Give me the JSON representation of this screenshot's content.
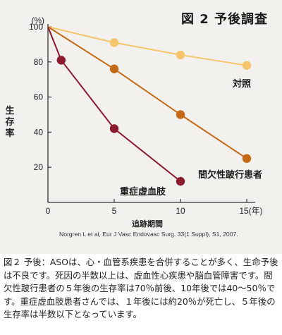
{
  "chart_data": {
    "type": "line",
    "title": "図 2  予後調査",
    "ylabel": "生存率",
    "yunit": "(%)",
    "xlabel": "追跡期間",
    "xunit": "(年)",
    "xlim": [
      0,
      15
    ],
    "ylim": [
      0,
      100
    ],
    "yticks": [
      20,
      40,
      60,
      80,
      100
    ],
    "xticks": [
      0,
      5,
      10,
      15
    ],
    "grid": false,
    "series": [
      {
        "name": "対照",
        "color": "#f6c56b",
        "x": [
          0,
          5,
          10,
          15
        ],
        "y": [
          100,
          91,
          84,
          78
        ]
      },
      {
        "name": "間欠性跛行患者",
        "color": "#c46a16",
        "x": [
          0,
          5,
          10,
          15
        ],
        "y": [
          100,
          76,
          50,
          25
        ]
      },
      {
        "name": "重症虚血肢",
        "color": "#8b1b2c",
        "x": [
          0,
          1,
          5,
          10
        ],
        "y": [
          100,
          81,
          42,
          12
        ]
      }
    ],
    "citation": "Norgren L et al, Eur J Vasc Endovasc Surg. 33(1 Suppl), S1, 2007."
  },
  "caption": "図２ 予後：ASOは、心・血管系疾患を合併することが多く、生命予後は不良です。死因の半数以上は、虚血性心疾患や脳血管障害です。間欠性跛行患者の５年後の生存率は70％前後、10年後では40～50％です。重症虚血肢患者さんでは、１年後には約20％が死亡し、５年後の生存率は半数以下となっています。"
}
